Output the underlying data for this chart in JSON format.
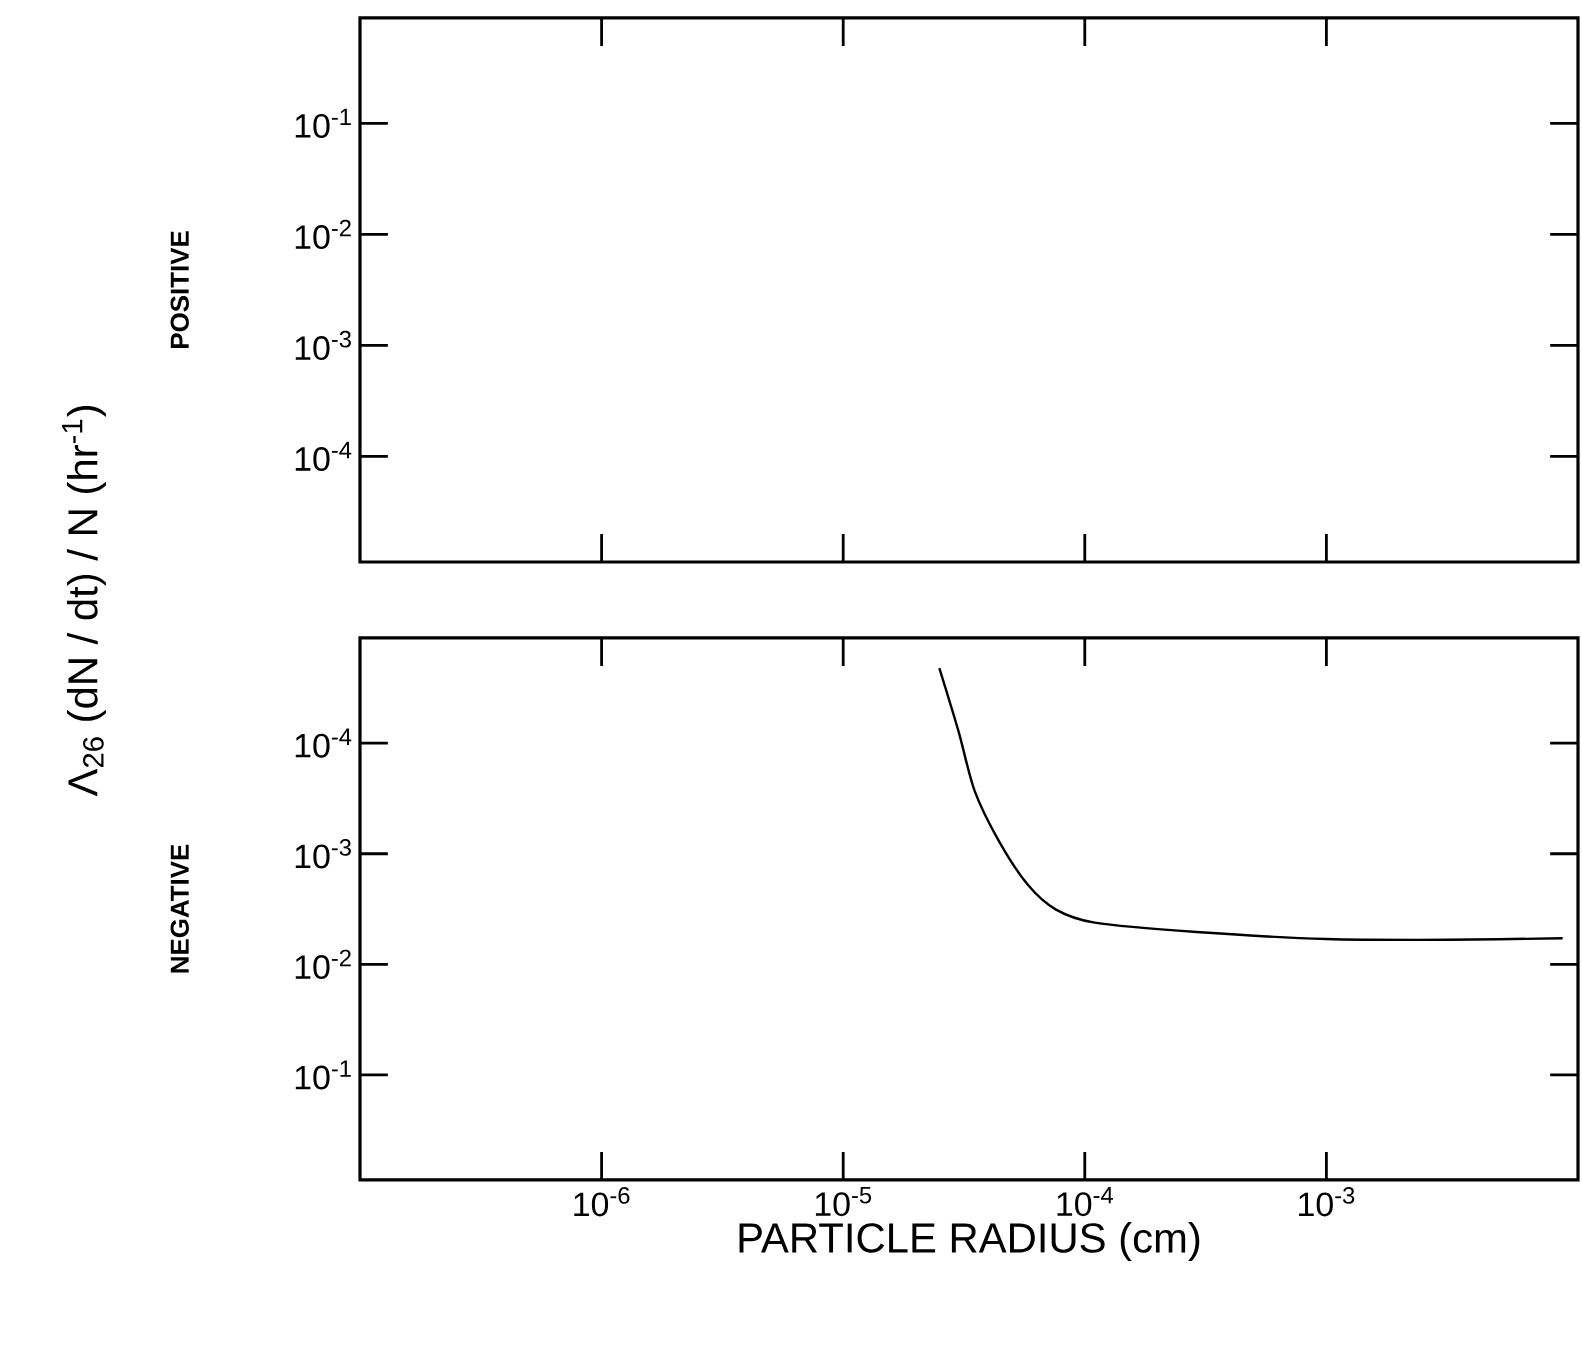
{
  "chart_data": [
    {
      "type": "line",
      "ylabel": "POSITIVE",
      "annotations": [
        "Λ$_{26}$   (dN / dt) / N   (hr$^{-1}$)"
      ],
      "log": "xy",
      "tick_labels": "y",
      "xlim": [
        1e-07,
        0.011
      ],
      "ylim": [
        1.12e-05,
        0.89
      ],
      "xticks": [
        {
          "value": 1e-06,
          "label": null
        },
        {
          "value": 1e-05,
          "label": null
        },
        {
          "value": 0.0001,
          "label": null
        },
        {
          "value": 0.001,
          "label": null
        }
      ],
      "yticks": [
        {
          "value": 0.1,
          "label": "10$^{-1}$"
        },
        {
          "value": 0.01,
          "label": "10$^{-2}$"
        },
        {
          "value": 0.001,
          "label": "10$^{-3}$"
        },
        {
          "value": 0.0001,
          "label": "10$^{-4}$"
        }
      ]
    },
    {
      "type": "line",
      "ylabel": "NEGATIVE",
      "xlabel": "PARTICLE RADIUS  (cm)",
      "log": "xy",
      "xlim": [
        1e-07,
        0.011
      ],
      "ylim": [
        0.89,
        1.12e-05
      ],
      "xticks": [
        {
          "value": 1e-06,
          "label": "10$^{-6}$"
        },
        {
          "value": 1e-05,
          "label": "10$^{-5}$"
        },
        {
          "value": 0.0001,
          "label": "10$^{-4}$"
        },
        {
          "value": 0.001,
          "label": "10$^{-3}$"
        }
      ],
      "yticks": [
        {
          "value": 0.0001,
          "label": "10$^{-4}$"
        },
        {
          "value": 0.001,
          "label": "10$^{-3}$"
        },
        {
          "value": 0.01,
          "label": "10$^{-2}$"
        },
        {
          "value": 0.1,
          "label": "10$^{-1}$"
        }
      ],
      "series": [
        {
          "color": "#000000",
          "x": [
            2.5e-05,
            3e-05,
            3.5e-05,
            4.4e-05,
            5.8e-05,
            7.6e-05,
            0.00011,
            0.00029,
            0.001,
            0.0032,
            0.0095
          ],
          "values": [
            2.1e-05,
            7.8e-05,
            0.00027,
            0.00076,
            0.0019,
            0.0032,
            0.0042,
            0.0051,
            0.0059,
            0.006,
            0.0058
          ]
        }
      ]
    }
  ]
}
